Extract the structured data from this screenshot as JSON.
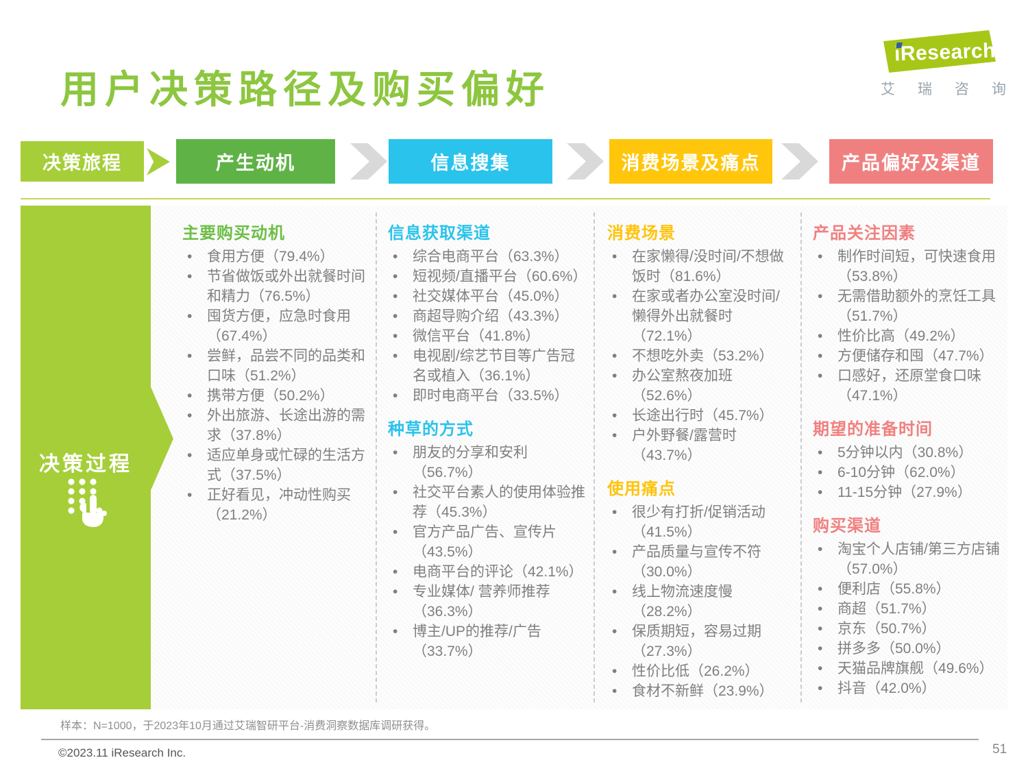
{
  "page": {
    "title": "用户决策路径及购买偏好",
    "page_number": "51",
    "footnote": "样本：N=1000，于2023年10月通过艾瑞智研平台-消费洞察数据库调研获得。",
    "copyright": "©2023.11 iResearch Inc."
  },
  "logo": {
    "brand": "iResearch",
    "brand_cn": "艾瑞咨询"
  },
  "colors": {
    "title_green": "#8DC63F",
    "journey_green": "#A5CE39",
    "hatch_panel_bg": "#FDFDFD",
    "body_text_gray": "#7F7F7F"
  },
  "flow": {
    "journey_label": "决策旅程",
    "journey_color": "#A5CE39",
    "stages": [
      {
        "label": "产生动机",
        "color": "#5FB346"
      },
      {
        "label": "信息搜集",
        "color": "#29C3EC"
      },
      {
        "label": "消费场景及痛点",
        "color": "#FFC60B"
      },
      {
        "label": "产品偏好及渠道",
        "color": "#F08080"
      }
    ]
  },
  "process_label": "决策过程",
  "columns": [
    {
      "accent": "#6CBE45",
      "sections": [
        {
          "heading": "主要购买动机",
          "items": [
            "食用方便（79.4%）",
            "节省做饭或外出就餐时间和精力（76.5%）",
            "囤货方便，应急时食用（67.4%）",
            "尝鲜，品尝不同的品类和口味（51.2%）",
            "携带方便（50.2%）",
            "外出旅游、长途出游的需求（37.8%）",
            "适应单身或忙碌的生活方式（37.5%）",
            "正好看见，冲动性购买（21.2%）"
          ]
        }
      ]
    },
    {
      "accent": "#29C3EC",
      "sections": [
        {
          "heading": "信息获取渠道",
          "items": [
            "综合电商平台（63.3%）",
            "短视频/直播平台（60.6%）",
            "社交媒体平台（45.0%）",
            "商超导购介绍（43.3%）",
            "微信平台（41.8%）",
            "电视剧/综艺节目等广告冠名或植入（36.1%）",
            "即时电商平台（33.5%）"
          ]
        },
        {
          "heading": "种草的方式",
          "items": [
            "朋友的分享和安利（56.7%）",
            "社交平台素人的使用体验推荐（45.3%）",
            "官方产品广告、宣传片（43.5%）",
            "电商平台的评论（42.1%）",
            "专业媒体/ 营养师推荐（36.3%）",
            "博主/UP的推荐/广告（33.7%）"
          ]
        }
      ]
    },
    {
      "accent": "#FFC30B",
      "sections": [
        {
          "heading": "消费场景",
          "items": [
            "在家懒得/没时间/不想做饭时（81.6%）",
            "在家或者办公室没时间/懒得外出就餐时（72.1%）",
            "不想吃外卖（53.2%）",
            "办公室熬夜加班（52.6%）",
            "长途出行时（45.7%）",
            "户外野餐/露营时（43.7%）"
          ]
        },
        {
          "heading": "使用痛点",
          "items": [
            "很少有打折/促销活动（41.5%）",
            "产品质量与宣传不符（30.0%）",
            "线上物流速度慢（28.2%）",
            "保质期短，容易过期（27.3%）",
            "性价比低（26.2%）",
            "食材不新鲜（23.9%）"
          ]
        }
      ]
    },
    {
      "accent": "#F08080",
      "sections": [
        {
          "heading": "产品关注因素",
          "items": [
            "制作时间短，可快速食用（53.8%）",
            "无需借助额外的烹饪工具（51.7%）",
            "性价比高（49.2%）",
            "方便储存和囤（47.7%）",
            "口感好，还原堂食口味（47.1%）"
          ]
        },
        {
          "heading": "期望的准备时间",
          "items": [
            "5分钟以内（30.8%）",
            "6-10分钟（62.0%）",
            "11-15分钟（27.9%）"
          ]
        },
        {
          "heading": "购买渠道",
          "items": [
            "淘宝个人店铺/第三方店铺（57.0%）",
            "便利店（55.8%）",
            "商超（51.7%）",
            "京东（50.7%）",
            "拼多多（50.0%）",
            "天猫品牌旗舰（49.6%）",
            "抖音（42.0%）"
          ]
        }
      ]
    }
  ]
}
